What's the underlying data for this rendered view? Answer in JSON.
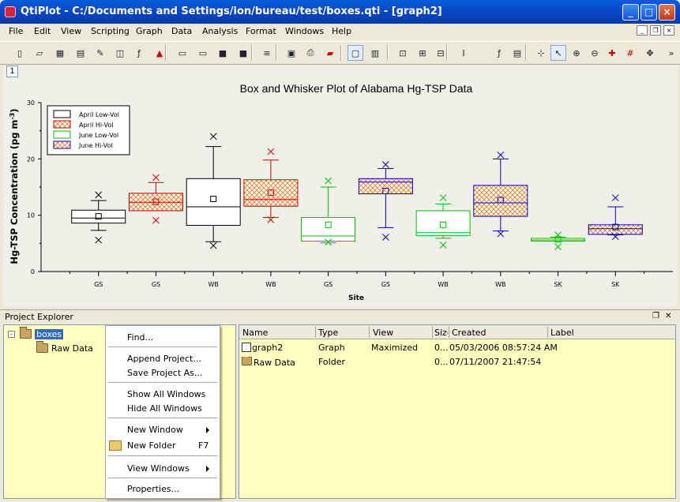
{
  "window": {
    "title": "QtiPlot - C:/Documents and Settings/ion/bureau/test/boxes.qti - [graph2]"
  },
  "menubar": [
    "File",
    "Edit",
    "View",
    "Scripting",
    "Graph",
    "Data",
    "Analysis",
    "Format",
    "Windows",
    "Help"
  ],
  "toolbar_icons": [
    "new-project-icon",
    "open-project-icon",
    "new-table-icon",
    "new-matrix-icon",
    "new-note-icon",
    "new-graph-icon",
    "new-function-icon",
    "new-3d-plot-icon",
    "open-folder-icon",
    "open-template-icon",
    "save-icon",
    "save-as-icon",
    "import-ascii-icon",
    "project-explorer-icon",
    "print-icon",
    "export-pdf-icon",
    "view-results-icon",
    "table-view-icon",
    "add-layer-icon",
    "arrange-layers-icon",
    "auto-layout-icon",
    "add-error-bars-icon",
    "add-function-icon",
    "add-text-icon",
    "select-data-range-icon",
    "pointer-icon",
    "zoom-in-icon",
    "zoom-out-icon",
    "data-reader-icon",
    "screen-reader-icon",
    "move-points-icon",
    "more-icon"
  ],
  "layer_button": "1",
  "chart_data": {
    "type": "box",
    "title": "Box and Whisker Plot of Alabama Hg-TSP Data",
    "xlabel": "Site",
    "ylabel": "Hg-TSP Concentration (pg m",
    "ylabel_sup": "-3",
    "ylabel_end": ")",
    "ylim": [
      0,
      30
    ],
    "yticks": [
      "0",
      "10",
      "20",
      "30"
    ],
    "categories": [
      "GS",
      "GS",
      "WB",
      "WB",
      "GS",
      "GS",
      "WB",
      "WB",
      "SK",
      "SK"
    ],
    "legend": {
      "position": "top-left",
      "entries": [
        "April Low-Vol",
        "April Hi-Vol",
        "June Low-Vol",
        "June Hi-Vol"
      ]
    },
    "colors": {
      "April Low-Vol": "#000000",
      "April Hi-Vol": "#d00000",
      "June Low-Vol": "#00c000",
      "June Hi-Vol": "#0000c8",
      "hatch": "#e87a20"
    },
    "boxes": [
      {
        "series": "April Low-Vol",
        "min": 7.3,
        "q1": 8.6,
        "median": 9.5,
        "q3": 10.9,
        "max": 12.6,
        "mean": 9.8,
        "outliers": [
          13.6,
          5.6
        ]
      },
      {
        "series": "April Hi-Vol",
        "min": 10.8,
        "q1": 10.8,
        "median": 12.3,
        "q3": 13.9,
        "max": 15.8,
        "mean": 12.4,
        "outliers": [
          16.7,
          9.1
        ]
      },
      {
        "series": "April Low-Vol",
        "min": 5.3,
        "q1": 8.2,
        "median": 11.5,
        "q3": 16.5,
        "max": 22.2,
        "mean": 12.9,
        "outliers": [
          24.0,
          4.6
        ]
      },
      {
        "series": "April Hi-Vol",
        "min": 9.6,
        "q1": 11.6,
        "median": 12.8,
        "q3": 16.3,
        "max": 19.8,
        "mean": 14.0,
        "outliers": [
          21.3,
          9.2
        ]
      },
      {
        "series": "June Low-Vol",
        "min": 5.1,
        "q1": 5.4,
        "median": 6.3,
        "q3": 9.6,
        "max": 15.0,
        "mean": 8.3,
        "outliers": [
          16.1,
          5.2
        ]
      },
      {
        "series": "June Hi-Vol",
        "min": 7.8,
        "q1": 13.8,
        "median": 15.9,
        "q3": 16.5,
        "max": 18.3,
        "mean": 14.3,
        "outliers": [
          19.0,
          6.1
        ]
      },
      {
        "series": "June Low-Vol",
        "min": 5.9,
        "q1": 6.4,
        "median": 6.9,
        "q3": 10.8,
        "max": 12.0,
        "mean": 8.3,
        "outliers": [
          13.1,
          4.7
        ]
      },
      {
        "series": "June Hi-Vol",
        "min": 7.2,
        "q1": 9.8,
        "median": 12.2,
        "q3": 15.3,
        "max": 20.0,
        "mean": 12.7,
        "outliers": [
          20.7,
          6.7
        ]
      },
      {
        "series": "June Low-Vol",
        "min": 5.4,
        "q1": 5.4,
        "median": 5.6,
        "q3": 5.9,
        "max": 6.1,
        "mean": 5.7,
        "outliers": [
          6.5,
          4.4
        ]
      },
      {
        "series": "June Hi-Vol",
        "min": 6.5,
        "q1": 6.6,
        "median": 7.6,
        "q3": 8.3,
        "max": 11.5,
        "mean": 7.9,
        "outliers": [
          13.1,
          6.2
        ]
      }
    ]
  },
  "project_explorer": {
    "title": "Project Explorer",
    "tree": {
      "root": "boxes",
      "child": "Raw Data"
    },
    "columns": [
      "Name",
      "Type",
      "View",
      "Size",
      "Created",
      "Label"
    ],
    "rows": [
      {
        "name": "graph2",
        "type": "Graph",
        "view": "Maximized",
        "size": "0...",
        "created": "05/03/2006 08:57:24 AM",
        "label": ""
      },
      {
        "name": "Raw Data",
        "type": "Folder",
        "view": "",
        "size": "0...",
        "created": "07/11/2007 21:47:54",
        "label": ""
      }
    ]
  },
  "context_menu": {
    "find": "Find...",
    "append_project": "Append Project...",
    "save_project_as": "Save Project As...",
    "show_all_windows": "Show All Windows",
    "hide_all_windows": "Hide All Windows",
    "new_window": "New Window",
    "new_folder": "New Folder",
    "new_folder_shortcut": "F7",
    "view_windows": "View Windows",
    "properties": "Properties..."
  }
}
